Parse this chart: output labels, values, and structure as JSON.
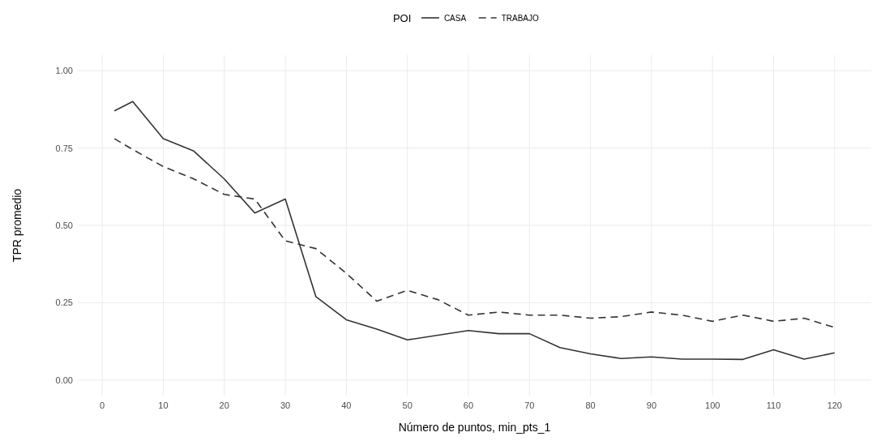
{
  "chart_data": {
    "type": "line",
    "xlabel": "Número de puntos, min_pts_1",
    "ylabel": "TPR promedio",
    "legend_title": "POI",
    "legend": "top",
    "grid": true,
    "xlim": [
      -4,
      126
    ],
    "xticks": [
      0,
      10,
      20,
      30,
      40,
      50,
      60,
      70,
      80,
      90,
      100,
      110,
      120
    ],
    "ylim": [
      -0.05,
      1.05
    ],
    "yticks": [
      {
        "value": 0,
        "label": "0.00"
      },
      {
        "value": 0.25,
        "label": "0.25"
      },
      {
        "value": 0.5,
        "label": "0.50"
      },
      {
        "value": 0.75,
        "label": "0.75"
      },
      {
        "value": 1,
        "label": "1.00"
      }
    ],
    "x": [
      2,
      5,
      10,
      15,
      20,
      25,
      30,
      35,
      40,
      45,
      50,
      55,
      60,
      65,
      70,
      75,
      80,
      85,
      90,
      95,
      100,
      105,
      110,
      115,
      120
    ],
    "series": [
      {
        "name": "CASA",
        "color": "#333333",
        "line_style": "solid",
        "values": [
          0.87,
          0.9,
          0.78,
          0.74,
          0.65,
          0.54,
          0.585,
          0.27,
          0.195,
          0.165,
          0.13,
          0.145,
          0.16,
          0.15,
          0.15,
          0.105,
          0.085,
          0.07,
          0.075,
          0.068,
          0.068,
          0.067,
          0.098,
          0.068,
          0.088
        ]
      },
      {
        "name": "TRABAJO",
        "color": "#333333",
        "line_style": "dashed",
        "values": [
          0.78,
          0.745,
          0.69,
          0.65,
          0.6,
          0.585,
          0.45,
          0.425,
          0.345,
          0.255,
          0.29,
          0.26,
          0.21,
          0.22,
          0.21,
          0.21,
          0.2,
          0.205,
          0.22,
          0.21,
          0.19,
          0.21,
          0.19,
          0.2,
          0.17
        ]
      }
    ]
  }
}
